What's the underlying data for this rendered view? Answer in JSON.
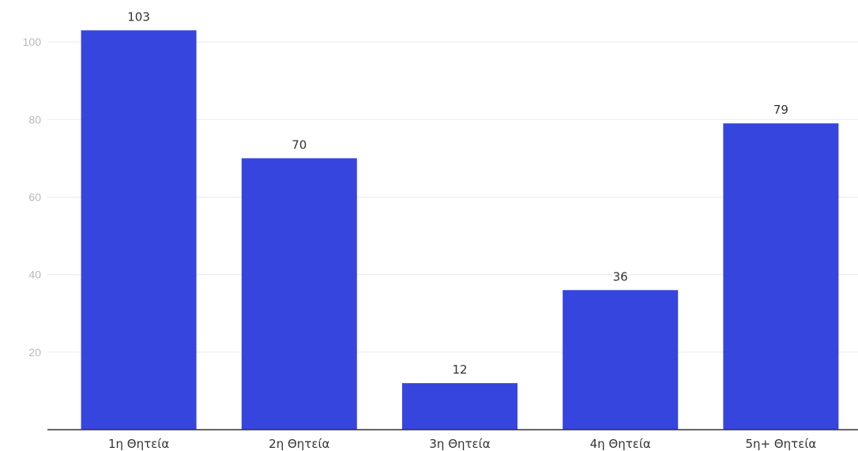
{
  "chart_data": {
    "type": "bar",
    "categories": [
      "1η Θητεία",
      "2η Θητεία",
      "3η Θητεία",
      "4η Θητεία",
      "5η+ Θητεία"
    ],
    "values": [
      103,
      70,
      12,
      36,
      79
    ],
    "value_labels": [
      "103",
      "70",
      "12",
      "36",
      "79"
    ],
    "ylim": [
      0,
      110
    ],
    "yticks": [
      20,
      40,
      60,
      80,
      100
    ],
    "ytick_labels": [
      "20",
      "40",
      "60",
      "80",
      "100"
    ],
    "grid": true,
    "bar_color": "#3645de",
    "title": "",
    "xlabel": "",
    "ylabel": ""
  }
}
